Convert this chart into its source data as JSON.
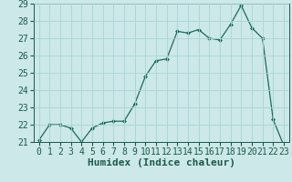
{
  "x": [
    0,
    1,
    2,
    3,
    4,
    5,
    6,
    7,
    8,
    9,
    10,
    11,
    12,
    13,
    14,
    15,
    16,
    17,
    18,
    19,
    20,
    21,
    22,
    23
  ],
  "y": [
    21.1,
    22.0,
    22.0,
    21.8,
    21.0,
    21.8,
    22.1,
    22.2,
    22.2,
    23.2,
    24.8,
    25.7,
    25.8,
    27.4,
    27.3,
    27.5,
    27.0,
    26.9,
    27.8,
    28.9,
    27.6,
    27.0,
    22.3,
    20.8
  ],
  "line_color": "#1a6b5a",
  "marker": "D",
  "marker_size": 2,
  "bg_color": "#cce8e8",
  "grid_color": "#aad4d4",
  "tick_color": "#1a5a4a",
  "xlabel": "Humidex (Indice chaleur)",
  "xlabel_color": "#1a5a4a",
  "ylim": [
    21,
    29
  ],
  "xlim": [
    -0.5,
    23.5
  ],
  "yticks": [
    21,
    22,
    23,
    24,
    25,
    26,
    27,
    28,
    29
  ],
  "xticks": [
    0,
    1,
    2,
    3,
    4,
    5,
    6,
    7,
    8,
    9,
    10,
    11,
    12,
    13,
    14,
    15,
    16,
    17,
    18,
    19,
    20,
    21,
    22,
    23
  ],
  "font_size": 7,
  "xlabel_fontsize": 8
}
